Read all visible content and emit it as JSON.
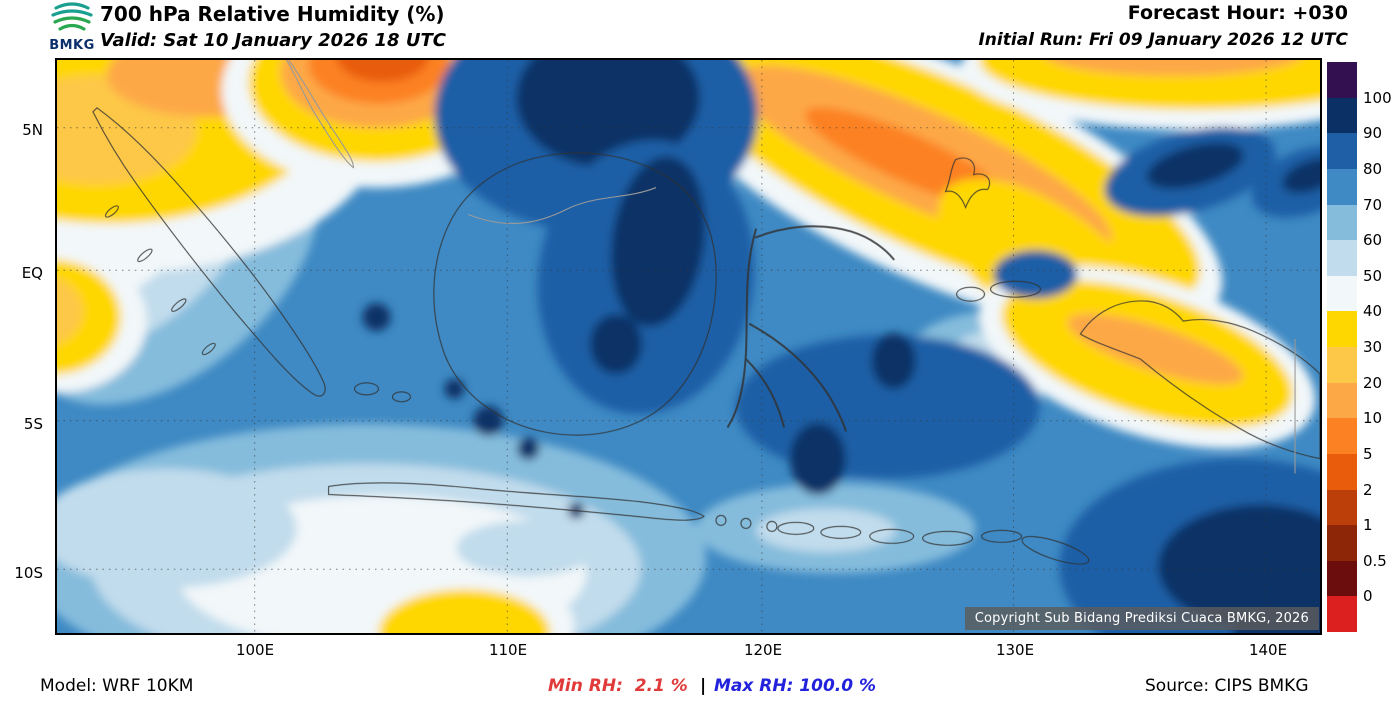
{
  "header": {
    "logo_text": "BMKG",
    "title": "700 hPa Relative Humidity (%)",
    "valid": "Valid: Sat 10 January 2026 18 UTC",
    "forecast_hour": "Forecast Hour: +030",
    "initial_run": "Initial Run: Fri 09 January 2026 12 UTC"
  },
  "axes": {
    "lat": [
      "5N",
      "EQ",
      "5S",
      "10S"
    ],
    "lon": [
      "100E",
      "110E",
      "120E",
      "130E",
      "140E"
    ]
  },
  "colorbar": {
    "labels": [
      "100",
      "90",
      "80",
      "70",
      "60",
      "50",
      "40",
      "30",
      "20",
      "10",
      "5",
      "2",
      "1",
      "0.5",
      "0"
    ],
    "colors": [
      "#33104f",
      "#0b3066",
      "#1f5fa6",
      "#3f8ac4",
      "#85bcdc",
      "#c1dcec",
      "#f2f7f9",
      "#ffd700",
      "#fdc847",
      "#fda847",
      "#fc8123",
      "#e85c0c",
      "#bc3f09",
      "#8c2607",
      "#6b0d0d",
      "#dc1f1f"
    ]
  },
  "map": {
    "copyright": "Copyright Sub Bidang Prediksi Cuaca BMKG, 2026"
  },
  "footer": {
    "model": "Model: WRF 10KM",
    "min_rh": "Min RH:  2.1 %",
    "separator": "|",
    "max_rh": "Max RH: 100.0 %",
    "source": "Source: CIPS BMKG",
    "min_color": "#e03a3a",
    "max_color": "#2222dd"
  }
}
